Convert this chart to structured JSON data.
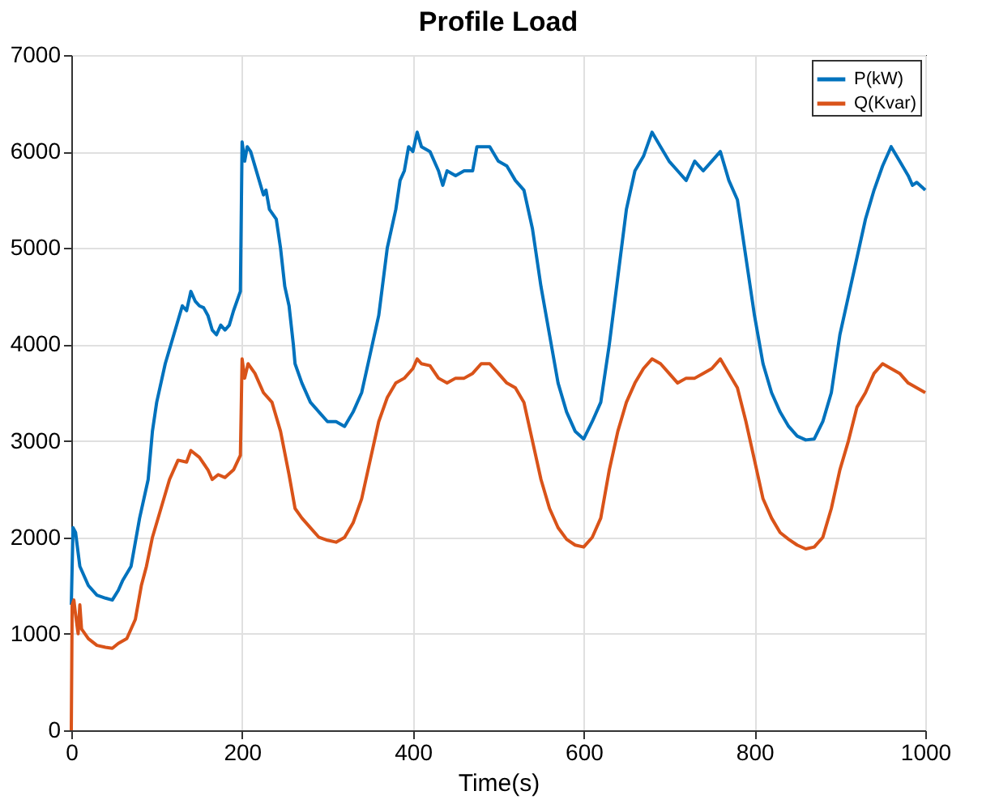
{
  "chart_data": {
    "type": "line",
    "title": "Profile Load",
    "xlabel": "Time(s)",
    "xlim": [
      0,
      1000
    ],
    "xticks": [
      0,
      200,
      400,
      600,
      800,
      1000
    ],
    "ylim": [
      0,
      7000
    ],
    "yticks": [
      0,
      1000,
      2000,
      3000,
      4000,
      5000,
      6000,
      7000
    ],
    "grid": true,
    "legend": "top right",
    "line_style": "solid",
    "marker": "none",
    "series": [
      {
        "name": "P(kW)",
        "color": "#0072bd",
        "x": [
          0,
          2,
          5,
          10,
          20,
          30,
          40,
          48,
          55,
          60,
          70,
          80,
          90,
          95,
          100,
          110,
          120,
          130,
          135,
          140,
          145,
          150,
          155,
          160,
          165,
          170,
          175,
          180,
          185,
          190,
          198,
          200,
          203,
          206,
          210,
          220,
          225,
          228,
          232,
          240,
          245,
          250,
          255,
          260,
          262,
          270,
          280,
          290,
          300,
          310,
          320,
          330,
          340,
          350,
          360,
          370,
          380,
          385,
          390,
          395,
          400,
          405,
          410,
          420,
          430,
          435,
          440,
          450,
          460,
          470,
          475,
          480,
          490,
          500,
          510,
          520,
          530,
          540,
          550,
          560,
          570,
          580,
          590,
          600,
          610,
          620,
          630,
          640,
          650,
          660,
          670,
          680,
          690,
          700,
          710,
          720,
          730,
          740,
          750,
          760,
          765,
          770,
          780,
          790,
          800,
          810,
          820,
          830,
          840,
          850,
          860,
          870,
          880,
          890,
          900,
          910,
          920,
          930,
          940,
          950,
          960,
          970,
          980,
          985,
          990,
          1000
        ],
        "values": [
          1300,
          2100,
          2050,
          1700,
          1500,
          1400,
          1370,
          1350,
          1450,
          1550,
          1700,
          2200,
          2600,
          3100,
          3400,
          3800,
          4100,
          4400,
          4350,
          4550,
          4450,
          4400,
          4380,
          4300,
          4150,
          4100,
          4200,
          4150,
          4200,
          4350,
          4550,
          6100,
          5900,
          6050,
          6000,
          5700,
          5550,
          5600,
          5400,
          5300,
          5000,
          4600,
          4400,
          4000,
          3800,
          3600,
          3400,
          3300,
          3200,
          3200,
          3150,
          3300,
          3500,
          3900,
          4300,
          5000,
          5400,
          5700,
          5800,
          6050,
          6000,
          6200,
          6050,
          6000,
          5800,
          5650,
          5800,
          5750,
          5800,
          5800,
          6050,
          6050,
          6050,
          5900,
          5850,
          5700,
          5600,
          5200,
          4600,
          4100,
          3600,
          3300,
          3100,
          3020,
          3200,
          3400,
          4000,
          4700,
          5400,
          5800,
          5950,
          6200,
          6050,
          5900,
          5800,
          5700,
          5900,
          5800,
          5900,
          6000,
          5850,
          5700,
          5500,
          4900,
          4300,
          3800,
          3500,
          3300,
          3150,
          3050,
          3010,
          3020,
          3200,
          3500,
          4100,
          4500,
          4900,
          5300,
          5600,
          5850,
          6050,
          5900,
          5750,
          5650,
          5680,
          5600
        ]
      },
      {
        "name": "Q(Kvar)",
        "color": "#d95319",
        "x": [
          0,
          1,
          3,
          5,
          8,
          10,
          12,
          20,
          30,
          40,
          48,
          55,
          65,
          75,
          82,
          88,
          95,
          105,
          115,
          125,
          135,
          140,
          150,
          160,
          165,
          172,
          180,
          190,
          198,
          200,
          203,
          207,
          215,
          225,
          235,
          245,
          255,
          262,
          270,
          280,
          290,
          300,
          310,
          320,
          330,
          340,
          350,
          360,
          370,
          380,
          390,
          400,
          405,
          410,
          420,
          430,
          440,
          450,
          460,
          470,
          480,
          490,
          500,
          510,
          520,
          530,
          540,
          550,
          560,
          570,
          580,
          590,
          600,
          610,
          620,
          630,
          640,
          650,
          660,
          670,
          680,
          690,
          700,
          710,
          720,
          730,
          740,
          750,
          760,
          770,
          780,
          790,
          800,
          810,
          820,
          830,
          840,
          850,
          860,
          870,
          880,
          890,
          900,
          910,
          920,
          930,
          940,
          950,
          960,
          970,
          980,
          990,
          1000
        ],
        "values": [
          0,
          1300,
          1350,
          1200,
          1000,
          1300,
          1050,
          950,
          880,
          860,
          850,
          900,
          950,
          1150,
          1500,
          1700,
          2000,
          2300,
          2600,
          2800,
          2780,
          2900,
          2830,
          2700,
          2600,
          2650,
          2620,
          2700,
          2850,
          3850,
          3650,
          3800,
          3700,
          3500,
          3400,
          3100,
          2650,
          2300,
          2200,
          2100,
          2000,
          1970,
          1950,
          2000,
          2150,
          2400,
          2800,
          3200,
          3450,
          3600,
          3650,
          3750,
          3850,
          3800,
          3780,
          3650,
          3600,
          3650,
          3650,
          3700,
          3800,
          3800,
          3700,
          3600,
          3550,
          3400,
          3000,
          2600,
          2300,
          2100,
          1980,
          1920,
          1900,
          2000,
          2200,
          2700,
          3100,
          3400,
          3600,
          3750,
          3850,
          3800,
          3700,
          3600,
          3650,
          3650,
          3700,
          3750,
          3850,
          3700,
          3550,
          3200,
          2800,
          2400,
          2200,
          2050,
          1980,
          1920,
          1880,
          1900,
          2000,
          2300,
          2700,
          3000,
          3350,
          3500,
          3700,
          3800,
          3750,
          3700,
          3600,
          3550,
          3500
        ]
      }
    ]
  }
}
